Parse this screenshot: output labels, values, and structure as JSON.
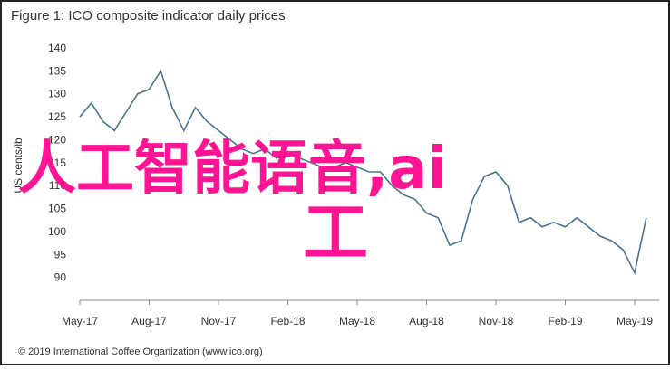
{
  "chart_data": {
    "type": "line",
    "title": "Figure 1: ICO composite indicator daily prices",
    "y_label": "US cents/lb",
    "footer": "© 2019 International Coffee Organization (www.ico.org)",
    "categories": [
      "May-17",
      null,
      null,
      null,
      null,
      null,
      "Aug-17",
      null,
      null,
      null,
      null,
      null,
      "Nov-17",
      null,
      null,
      null,
      null,
      null,
      "Feb-18",
      null,
      null,
      null,
      null,
      null,
      "May-18",
      null,
      null,
      null,
      null,
      null,
      "Aug-18",
      null,
      null,
      null,
      null,
      null,
      "Nov-18",
      null,
      null,
      null,
      null,
      null,
      "Feb-19",
      null,
      null,
      null,
      null,
      null,
      "May-19",
      null
    ],
    "values": [
      125,
      128,
      124,
      122,
      126,
      130,
      131,
      135,
      127,
      122,
      127,
      124,
      122,
      120,
      118,
      117,
      118,
      116,
      117,
      116,
      115,
      114,
      114,
      115,
      114,
      113,
      113,
      110,
      108,
      107,
      104,
      103,
      97,
      98,
      107,
      112,
      113,
      110,
      102,
      103,
      101,
      102,
      101,
      103,
      101,
      99,
      98,
      96,
      91,
      103
    ],
    "color": "#4a7390",
    "ylim": [
      85,
      140
    ],
    "yticks": [
      90,
      95,
      100,
      105,
      110,
      115,
      120,
      125,
      130,
      135,
      140
    ]
  },
  "overlay": {
    "line1": "人工智能语音,ai",
    "line2": "工"
  }
}
